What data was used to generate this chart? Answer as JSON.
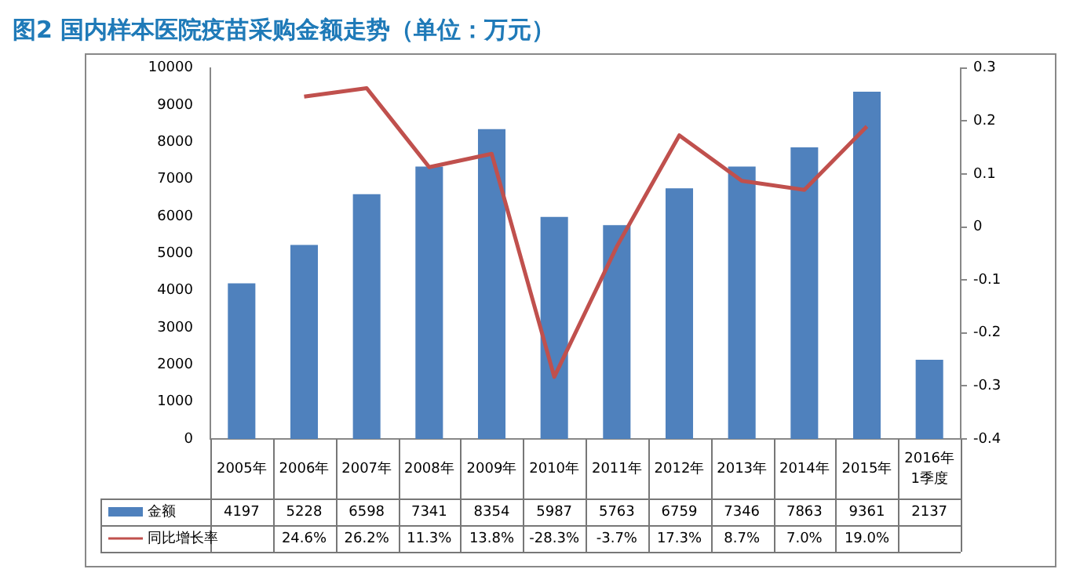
{
  "chart_data": {
    "type": "bar",
    "title": "图2 国内样本医院疫苗采购金额走势（单位：万元）",
    "categories": [
      "2005年",
      "2006年",
      "2007年",
      "2008年",
      "2009年",
      "2010年",
      "2011年",
      "2012年",
      "2013年",
      "2014年",
      "2015年",
      "2016年1季度"
    ],
    "series": [
      {
        "name": "金额",
        "color": "#4f81bd",
        "values": [
          4197,
          5228,
          6598,
          7341,
          8354,
          5987,
          5763,
          6759,
          7346,
          7863,
          9361,
          2137
        ]
      },
      {
        "name": "同比增长率",
        "type": "line",
        "axis": "y2",
        "color": "#c0504d",
        "values": [
          null,
          0.246,
          0.262,
          0.113,
          0.138,
          -0.283,
          -0.037,
          0.173,
          0.087,
          0.07,
          0.19,
          null
        ],
        "value_labels": [
          null,
          "24.6%",
          "26.2%",
          "11.3%",
          "13.8%",
          "-28.3%",
          "-3.7%",
          "17.3%",
          "8.7%",
          "7.0%",
          "19.0%",
          null
        ]
      }
    ],
    "data_labels": true,
    "ylim": [
      0,
      10000
    ],
    "yticks": [
      0,
      1000,
      2000,
      3000,
      4000,
      5000,
      6000,
      7000,
      8000,
      9000,
      10000
    ],
    "y2lim": [
      -0.4,
      0.3
    ],
    "y2ticks": [
      -0.4,
      -0.3,
      -0.2,
      -0.1,
      0,
      0.1,
      0.2,
      0.3
    ],
    "grid": false,
    "legend": "bottom",
    "marker": "none",
    "line_style": "solid"
  }
}
